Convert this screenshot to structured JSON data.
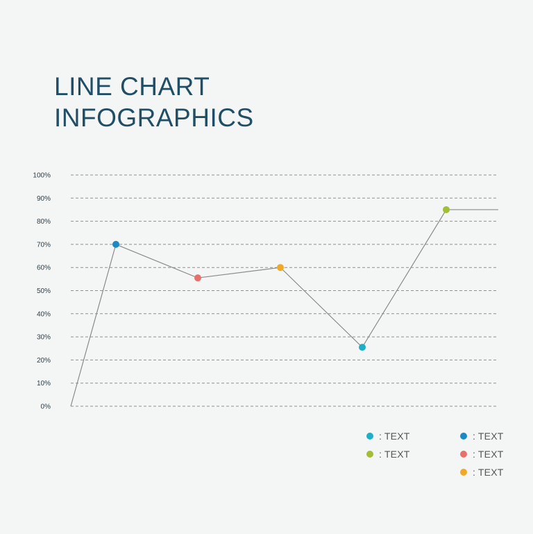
{
  "title_lines": [
    "LINE CHART",
    "INFOGRAPHICS"
  ],
  "chart_data": {
    "type": "line",
    "x": [
      0,
      1,
      2,
      3,
      4,
      5,
      6
    ],
    "series": [
      {
        "values": [
          0,
          70,
          55.5,
          60,
          25.5,
          85,
          85
        ],
        "line_color": "#8a8a8a"
      }
    ],
    "markers": [
      {
        "x": 1,
        "y": 70,
        "color": "#1b8ac4"
      },
      {
        "x": 2,
        "y": 55.5,
        "color": "#e8706b"
      },
      {
        "x": 3,
        "y": 60,
        "color": "#f0a825"
      },
      {
        "x": 4,
        "y": 25.5,
        "color": "#1bb0c7"
      },
      {
        "x": 5,
        "y": 85,
        "color": "#a2be34"
      }
    ],
    "yticks": [
      "0%",
      "10%",
      "20%",
      "30%",
      "40%",
      "50%",
      "60%",
      "70%",
      "80%",
      "90%",
      "100%"
    ],
    "ylim": [
      0,
      100
    ],
    "grid": true,
    "grid_style": "dashed",
    "legend": [
      {
        "label": ": TEXT",
        "color": "#1bb0c7"
      },
      {
        "label": ": TEXT",
        "color": "#1b8ac4"
      },
      {
        "label": ": TEXT",
        "color": "#a2be34"
      },
      {
        "label": ": TEXT",
        "color": "#e8706b"
      },
      {
        "label": ": TEXT",
        "color": "#f0a825"
      }
    ]
  },
  "colors": {
    "title": "#1f4e66",
    "background": "#f4f5f5",
    "grid": "#8f8f8f"
  }
}
